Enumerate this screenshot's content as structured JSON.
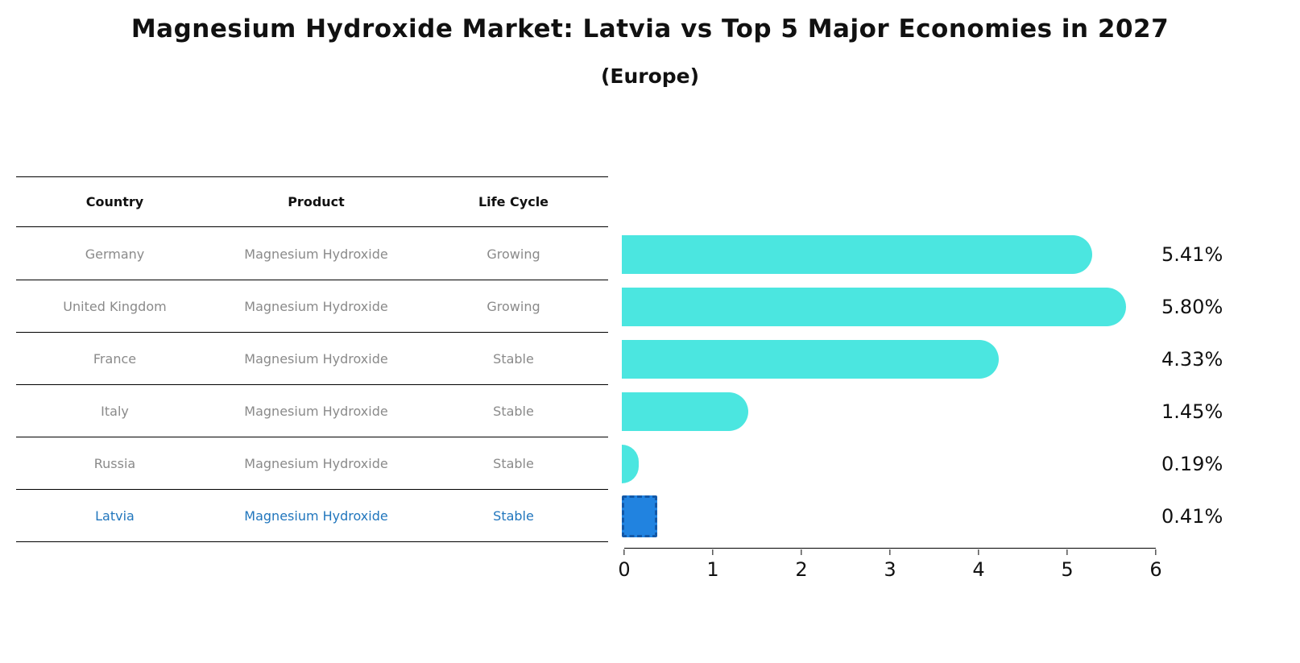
{
  "title": "Magnesium Hydroxide Market: Latvia vs Top 5 Major Economies in 2027",
  "subtitle": "(Europe)",
  "table": {
    "headers": {
      "country": "Country",
      "product": "Product",
      "life_cycle": "Life Cycle"
    }
  },
  "rows": [
    {
      "country": "Germany",
      "product": "Magnesium Hydroxide",
      "life_cycle": "Growing",
      "value": 5.41,
      "label": "5.41%",
      "highlight": false
    },
    {
      "country": "United Kingdom",
      "product": "Magnesium Hydroxide",
      "life_cycle": "Growing",
      "value": 5.8,
      "label": "5.80%",
      "highlight": false
    },
    {
      "country": "France",
      "product": "Magnesium Hydroxide",
      "life_cycle": "Stable",
      "value": 4.33,
      "label": "4.33%",
      "highlight": false
    },
    {
      "country": "Italy",
      "product": "Magnesium Hydroxide",
      "life_cycle": "Stable",
      "value": 1.45,
      "label": "1.45%",
      "highlight": false
    },
    {
      "country": "Russia",
      "product": "Magnesium Hydroxide",
      "life_cycle": "Stable",
      "value": 0.19,
      "label": "0.19%",
      "highlight": false
    },
    {
      "country": "Latvia",
      "product": "Magnesium Hydroxide",
      "life_cycle": "Stable",
      "value": 0.41,
      "label": "0.41%",
      "highlight": true
    }
  ],
  "chart_data": {
    "type": "bar",
    "orientation": "horizontal",
    "title": "Magnesium Hydroxide Market: Latvia vs Top 5 Major Economies in 2027 (Europe)",
    "categories": [
      "Germany",
      "United Kingdom",
      "France",
      "Italy",
      "Russia",
      "Latvia"
    ],
    "values": [
      5.41,
      5.8,
      4.33,
      1.45,
      0.19,
      0.41
    ],
    "data_labels": [
      "5.41%",
      "5.80%",
      "4.33%",
      "1.45%",
      "0.19%",
      "0.41%"
    ],
    "life_cycle": [
      "Growing",
      "Growing",
      "Stable",
      "Stable",
      "Stable",
      "Stable"
    ],
    "product": "Magnesium Hydroxide",
    "xlabel": "",
    "ylabel": "",
    "xlim": [
      0,
      6
    ],
    "xticks": [
      "0",
      "1",
      "2",
      "3",
      "4",
      "5",
      "6"
    ],
    "grid": false,
    "legend": false,
    "bar_color": "#4be6e0",
    "highlight_color": "#2183e0",
    "highlight_border_color": "#1258a8",
    "highlighted_category": "Latvia"
  },
  "axis": {
    "ticks": [
      "0",
      "1",
      "2",
      "3",
      "4",
      "5",
      "6"
    ]
  }
}
